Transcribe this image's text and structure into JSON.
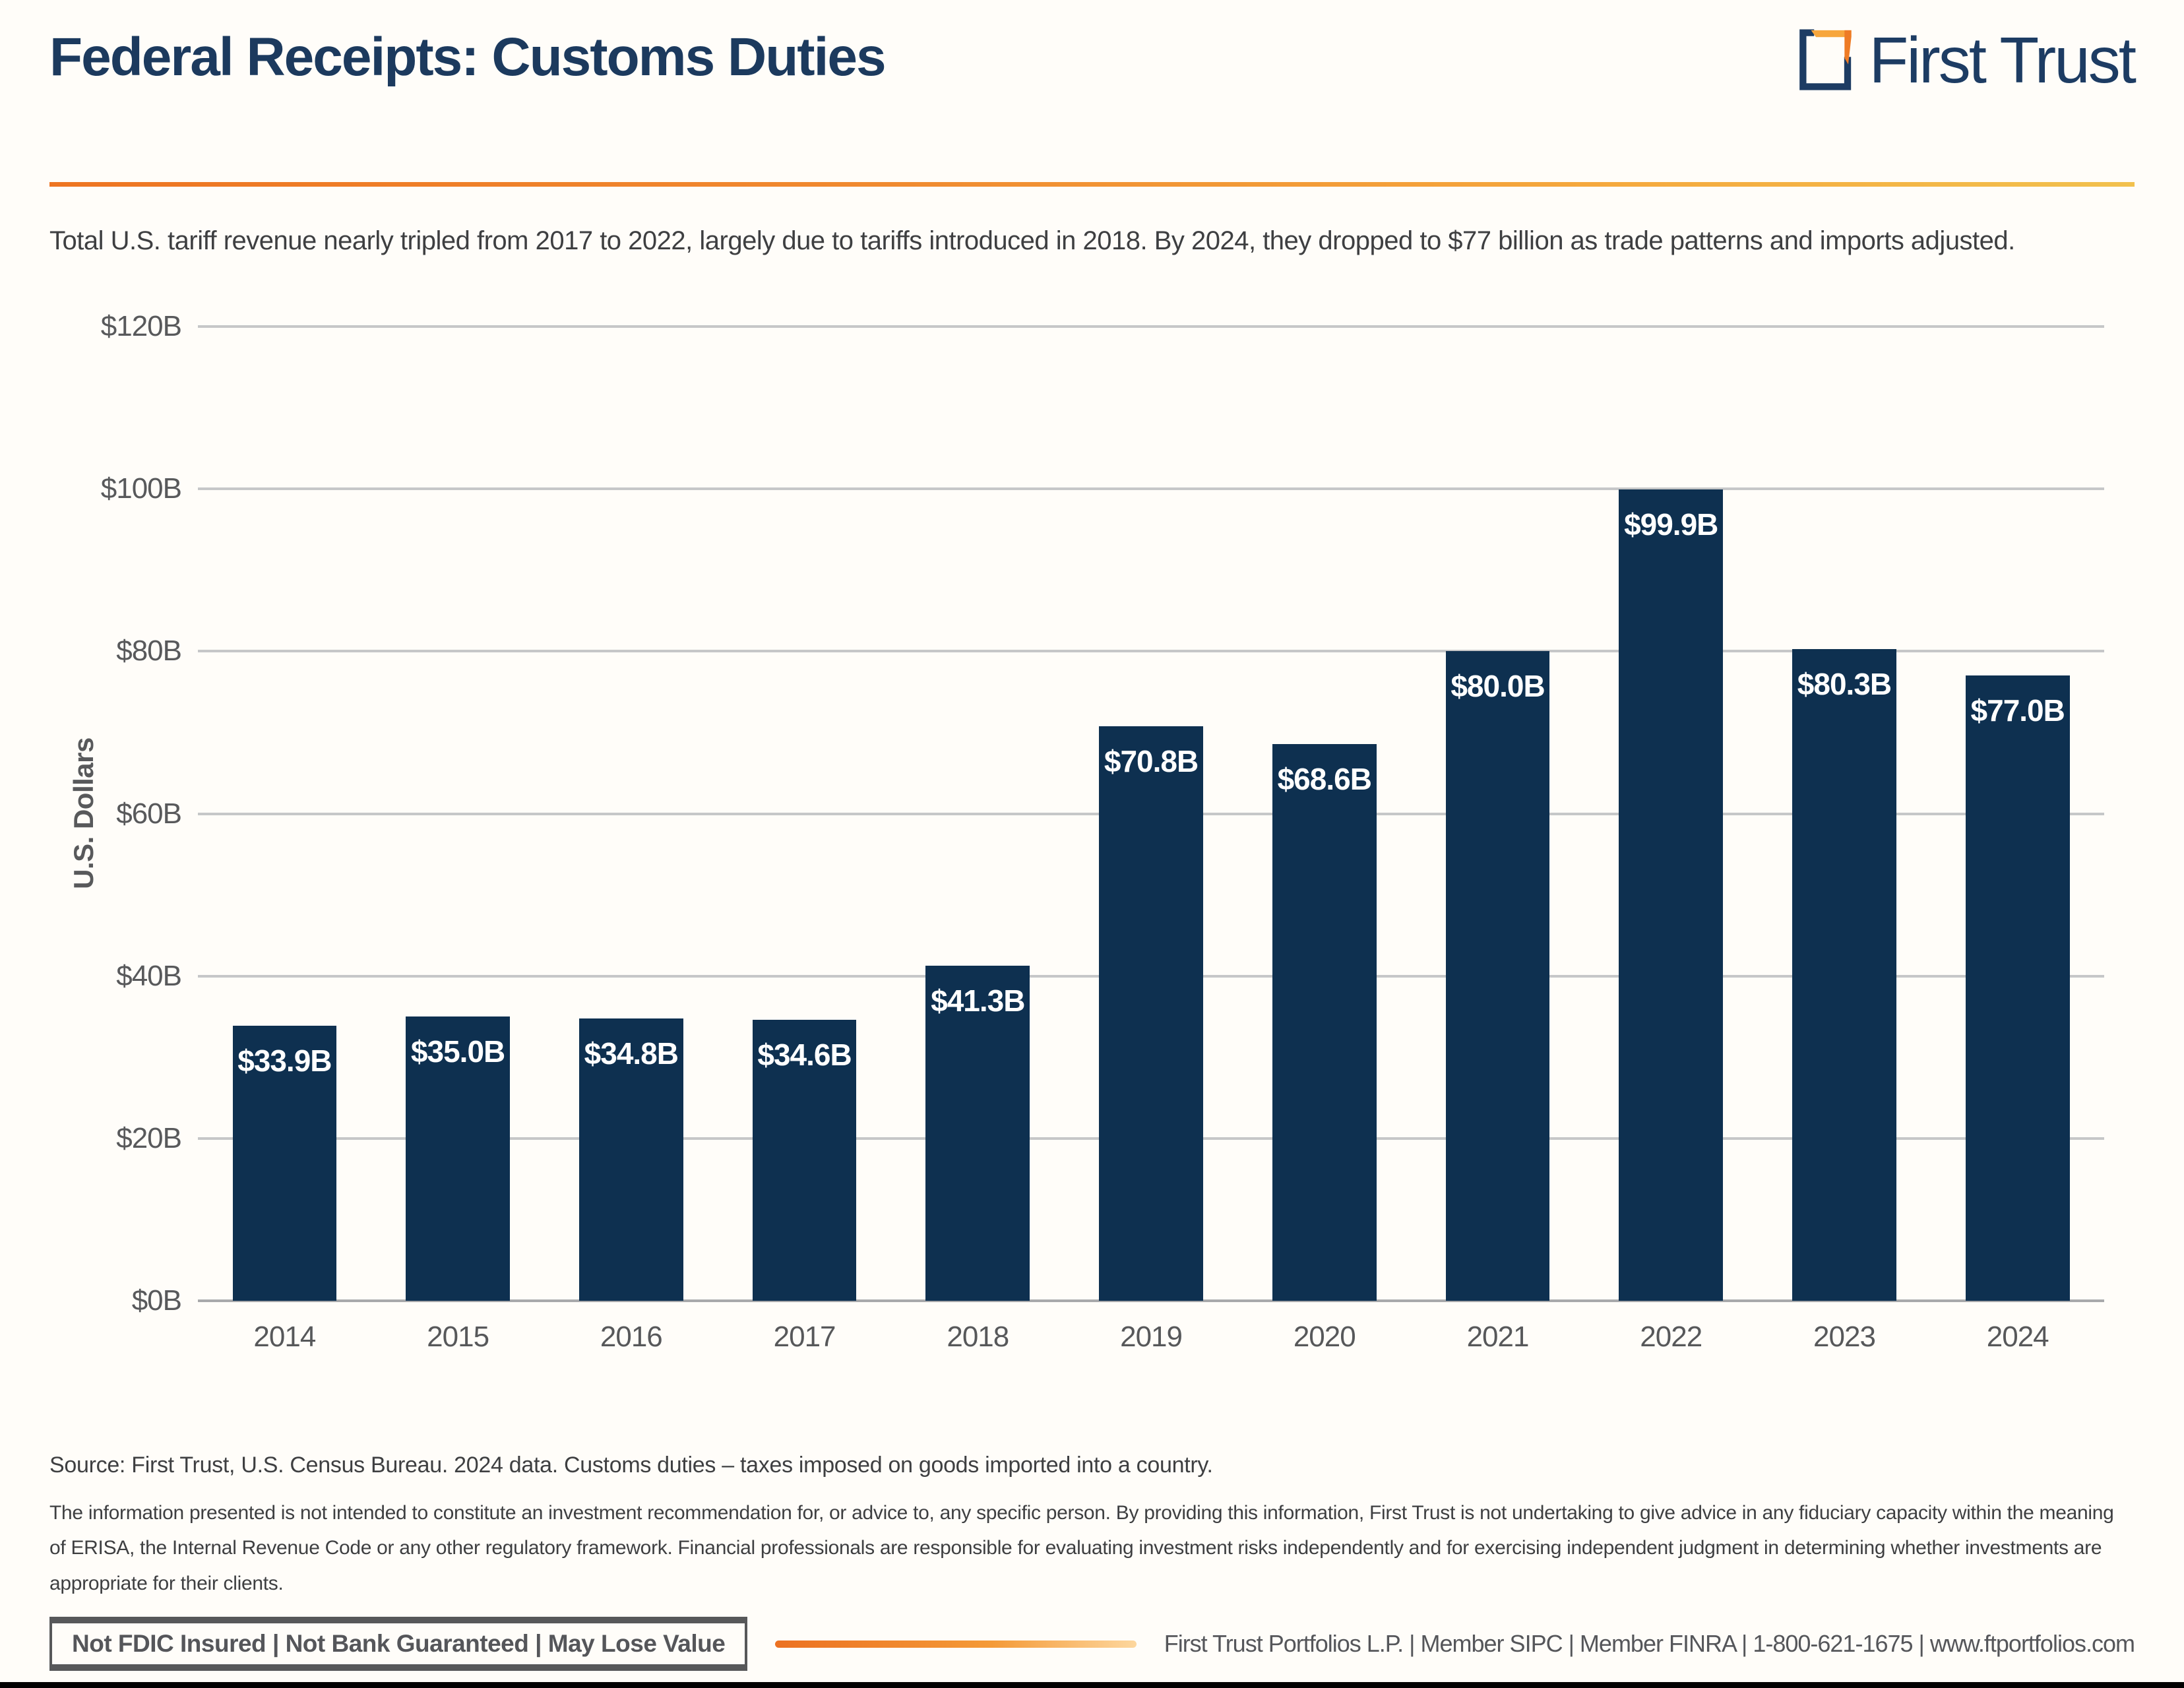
{
  "header": {
    "title": "Federal Receipts: Customs Duties",
    "logo_text": "First Trust"
  },
  "subtitle": "Total U.S. tariff revenue nearly tripled from 2017 to 2022, largely due to tariffs introduced in 2018. By 2024, they dropped to $77 billion as trade patterns and imports adjusted.",
  "chart_data": {
    "type": "bar",
    "title": "Federal Receipts: Customs Duties",
    "categories": [
      "2014",
      "2015",
      "2016",
      "2017",
      "2018",
      "2019",
      "2020",
      "2021",
      "2022",
      "2023",
      "2024"
    ],
    "values": [
      33.9,
      35.0,
      34.8,
      34.6,
      41.3,
      70.8,
      68.6,
      80.0,
      99.9,
      80.3,
      77.0
    ],
    "bar_labels": [
      "$33.9B",
      "$35.0B",
      "$34.8B",
      "$34.6B",
      "$41.3B",
      "$70.8B",
      "$68.6B",
      "$80.0B",
      "$99.9B",
      "$80.3B",
      "$77.0B"
    ],
    "xlabel": "",
    "ylabel": "U.S. Dollars",
    "ylim": [
      0,
      120
    ],
    "yticks": [
      0,
      20,
      40,
      60,
      80,
      100,
      120
    ],
    "ytick_labels": [
      "$0B",
      "$20B",
      "$40B",
      "$60B",
      "$80B",
      "$100B",
      "$120B"
    ],
    "grid": true,
    "legend": false,
    "bar_color": "#0e3050",
    "value_label_color": "#ffffff"
  },
  "footnotes": {
    "source": "Source: First Trust, U.S. Census Bureau. 2024 data. Customs duties – taxes imposed on goods imported into a country.",
    "disclaimer": "The information presented is not intended to constitute an investment recommendation for, or advice to, any specific person. By providing this information, First Trust is not undertaking to give advice in any fiduciary capacity within the meaning of ERISA, the Internal Revenue Code or any other regulatory framework. Financial professionals are responsible for evaluating investment risks independently and for exercising independent judgment in determining whether investments are appropriate for their clients."
  },
  "footer": {
    "disclosure": "Not FDIC Insured | Not Bank Guaranteed | May Lose Value",
    "company_line": "First Trust Portfolios L.P. | Member SIPC | Member FINRA | 1-800-621-1675 | www.ftportfolios.com"
  },
  "colors": {
    "navy": "#1d3c63",
    "bar_navy": "#0e3050",
    "orange": "#ee7522",
    "gold": "#f2c14e",
    "gridline": "#c6c7c8",
    "axis_text": "#58595b",
    "body_text": "#3e3f41"
  }
}
